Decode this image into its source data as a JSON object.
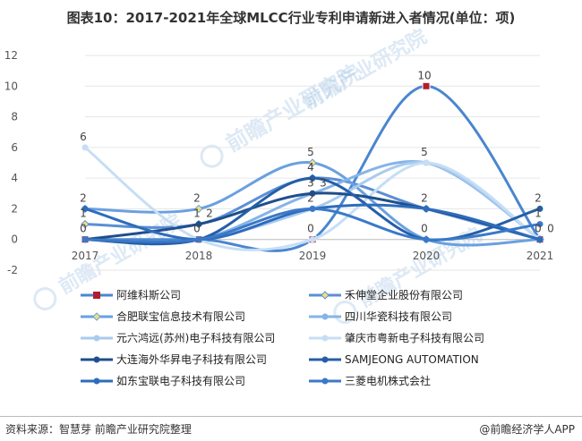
{
  "title": "图表10：2017-2021年全球MLCC行业专利申请新进入者情况(单位：项)",
  "footer": {
    "source": "资料来源：智慧芽 前瞻产业研究院整理",
    "brand": "@前瞻经济学人APP"
  },
  "watermark": "前瞻产业研究院",
  "chart_data": {
    "type": "line",
    "x": [
      "2017",
      "2018",
      "2019",
      "2020",
      "2021"
    ],
    "ylim": [
      -2,
      12
    ],
    "yticks": [
      "-2",
      "0",
      "2",
      "4",
      "6",
      "8",
      "10",
      "12"
    ],
    "grid": true,
    "legend_position": "bottom",
    "series": [
      {
        "name": "阿维科斯公司",
        "values": [
          0,
          0,
          0,
          10,
          0
        ],
        "color": "#4a86cf",
        "marker": "square"
      },
      {
        "name": "禾伸堂企业股份有限公司",
        "values": [
          1,
          1,
          4,
          2,
          0
        ],
        "color": "#5b8fd4",
        "marker": "diamond"
      },
      {
        "name": "合肥联宝信息技术有限公司",
        "values": [
          2,
          2,
          5,
          0,
          0
        ],
        "color": "#6aa0e0",
        "marker": "diamond"
      },
      {
        "name": "四川华瓷科技有限公司",
        "values": [
          0,
          0,
          3,
          5,
          0
        ],
        "color": "#86b4e8",
        "marker": "circle"
      },
      {
        "name": "元六鸿远(苏州)电子科技有限公司",
        "values": [
          0,
          0,
          2,
          5,
          0
        ],
        "color": "#a8cbef",
        "marker": "circle"
      },
      {
        "name": "肇庆市粤新电子科技有限公司",
        "values": [
          6,
          0,
          0,
          5,
          0
        ],
        "color": "#c6def5",
        "marker": "circle"
      },
      {
        "name": "大连海外华昇电子科技有限公司",
        "values": [
          0,
          1,
          3,
          2,
          0
        ],
        "color": "#1f4e8c",
        "marker": "circle"
      },
      {
        "name": "SAMJEONG AUTOMATION",
        "values": [
          0,
          0,
          4,
          0,
          2
        ],
        "color": "#255ea8",
        "marker": "circle"
      },
      {
        "name": "如东宝联电子科技有限公司",
        "values": [
          2,
          0,
          2,
          2,
          0
        ],
        "color": "#2e6cbc",
        "marker": "circle"
      },
      {
        "name": "三菱电机株式会社",
        "values": [
          0,
          0,
          2,
          0,
          1
        ],
        "color": "#3a79c9",
        "marker": "circle"
      }
    ],
    "labels": [
      {
        "x": 0,
        "text": "6",
        "y": 6
      },
      {
        "x": 0,
        "text": "2",
        "y": 2
      },
      {
        "x": 0,
        "text": "1",
        "y": 1
      },
      {
        "x": 0,
        "text": "0",
        "y": 0
      },
      {
        "x": 1,
        "text": "2",
        "y": 2
      },
      {
        "x": 1,
        "text": "1",
        "y": 1
      },
      {
        "x": 1,
        "text": "0",
        "y": 0
      },
      {
        "x": 1,
        "text": "2",
        "y": 1
      },
      {
        "x": 2,
        "text": "5",
        "y": 5
      },
      {
        "x": 2,
        "text": "4",
        "y": 4
      },
      {
        "x": 2,
        "text": "3",
        "y": 3
      },
      {
        "x": 2,
        "text": "2",
        "y": 2
      },
      {
        "x": 2,
        "text": "0",
        "y": 0
      },
      {
        "x": 2,
        "text": "3",
        "y": 3
      },
      {
        "x": 3,
        "text": "10",
        "y": 10
      },
      {
        "x": 3,
        "text": "5",
        "y": 5
      },
      {
        "x": 3,
        "text": "2",
        "y": 2
      },
      {
        "x": 3,
        "text": "0",
        "y": 0
      },
      {
        "x": 4,
        "text": "2",
        "y": 2
      },
      {
        "x": 4,
        "text": "1",
        "y": 1
      },
      {
        "x": 4,
        "text": "0",
        "y": 0
      },
      {
        "x": 4,
        "text": "0",
        "y": 0
      }
    ]
  }
}
